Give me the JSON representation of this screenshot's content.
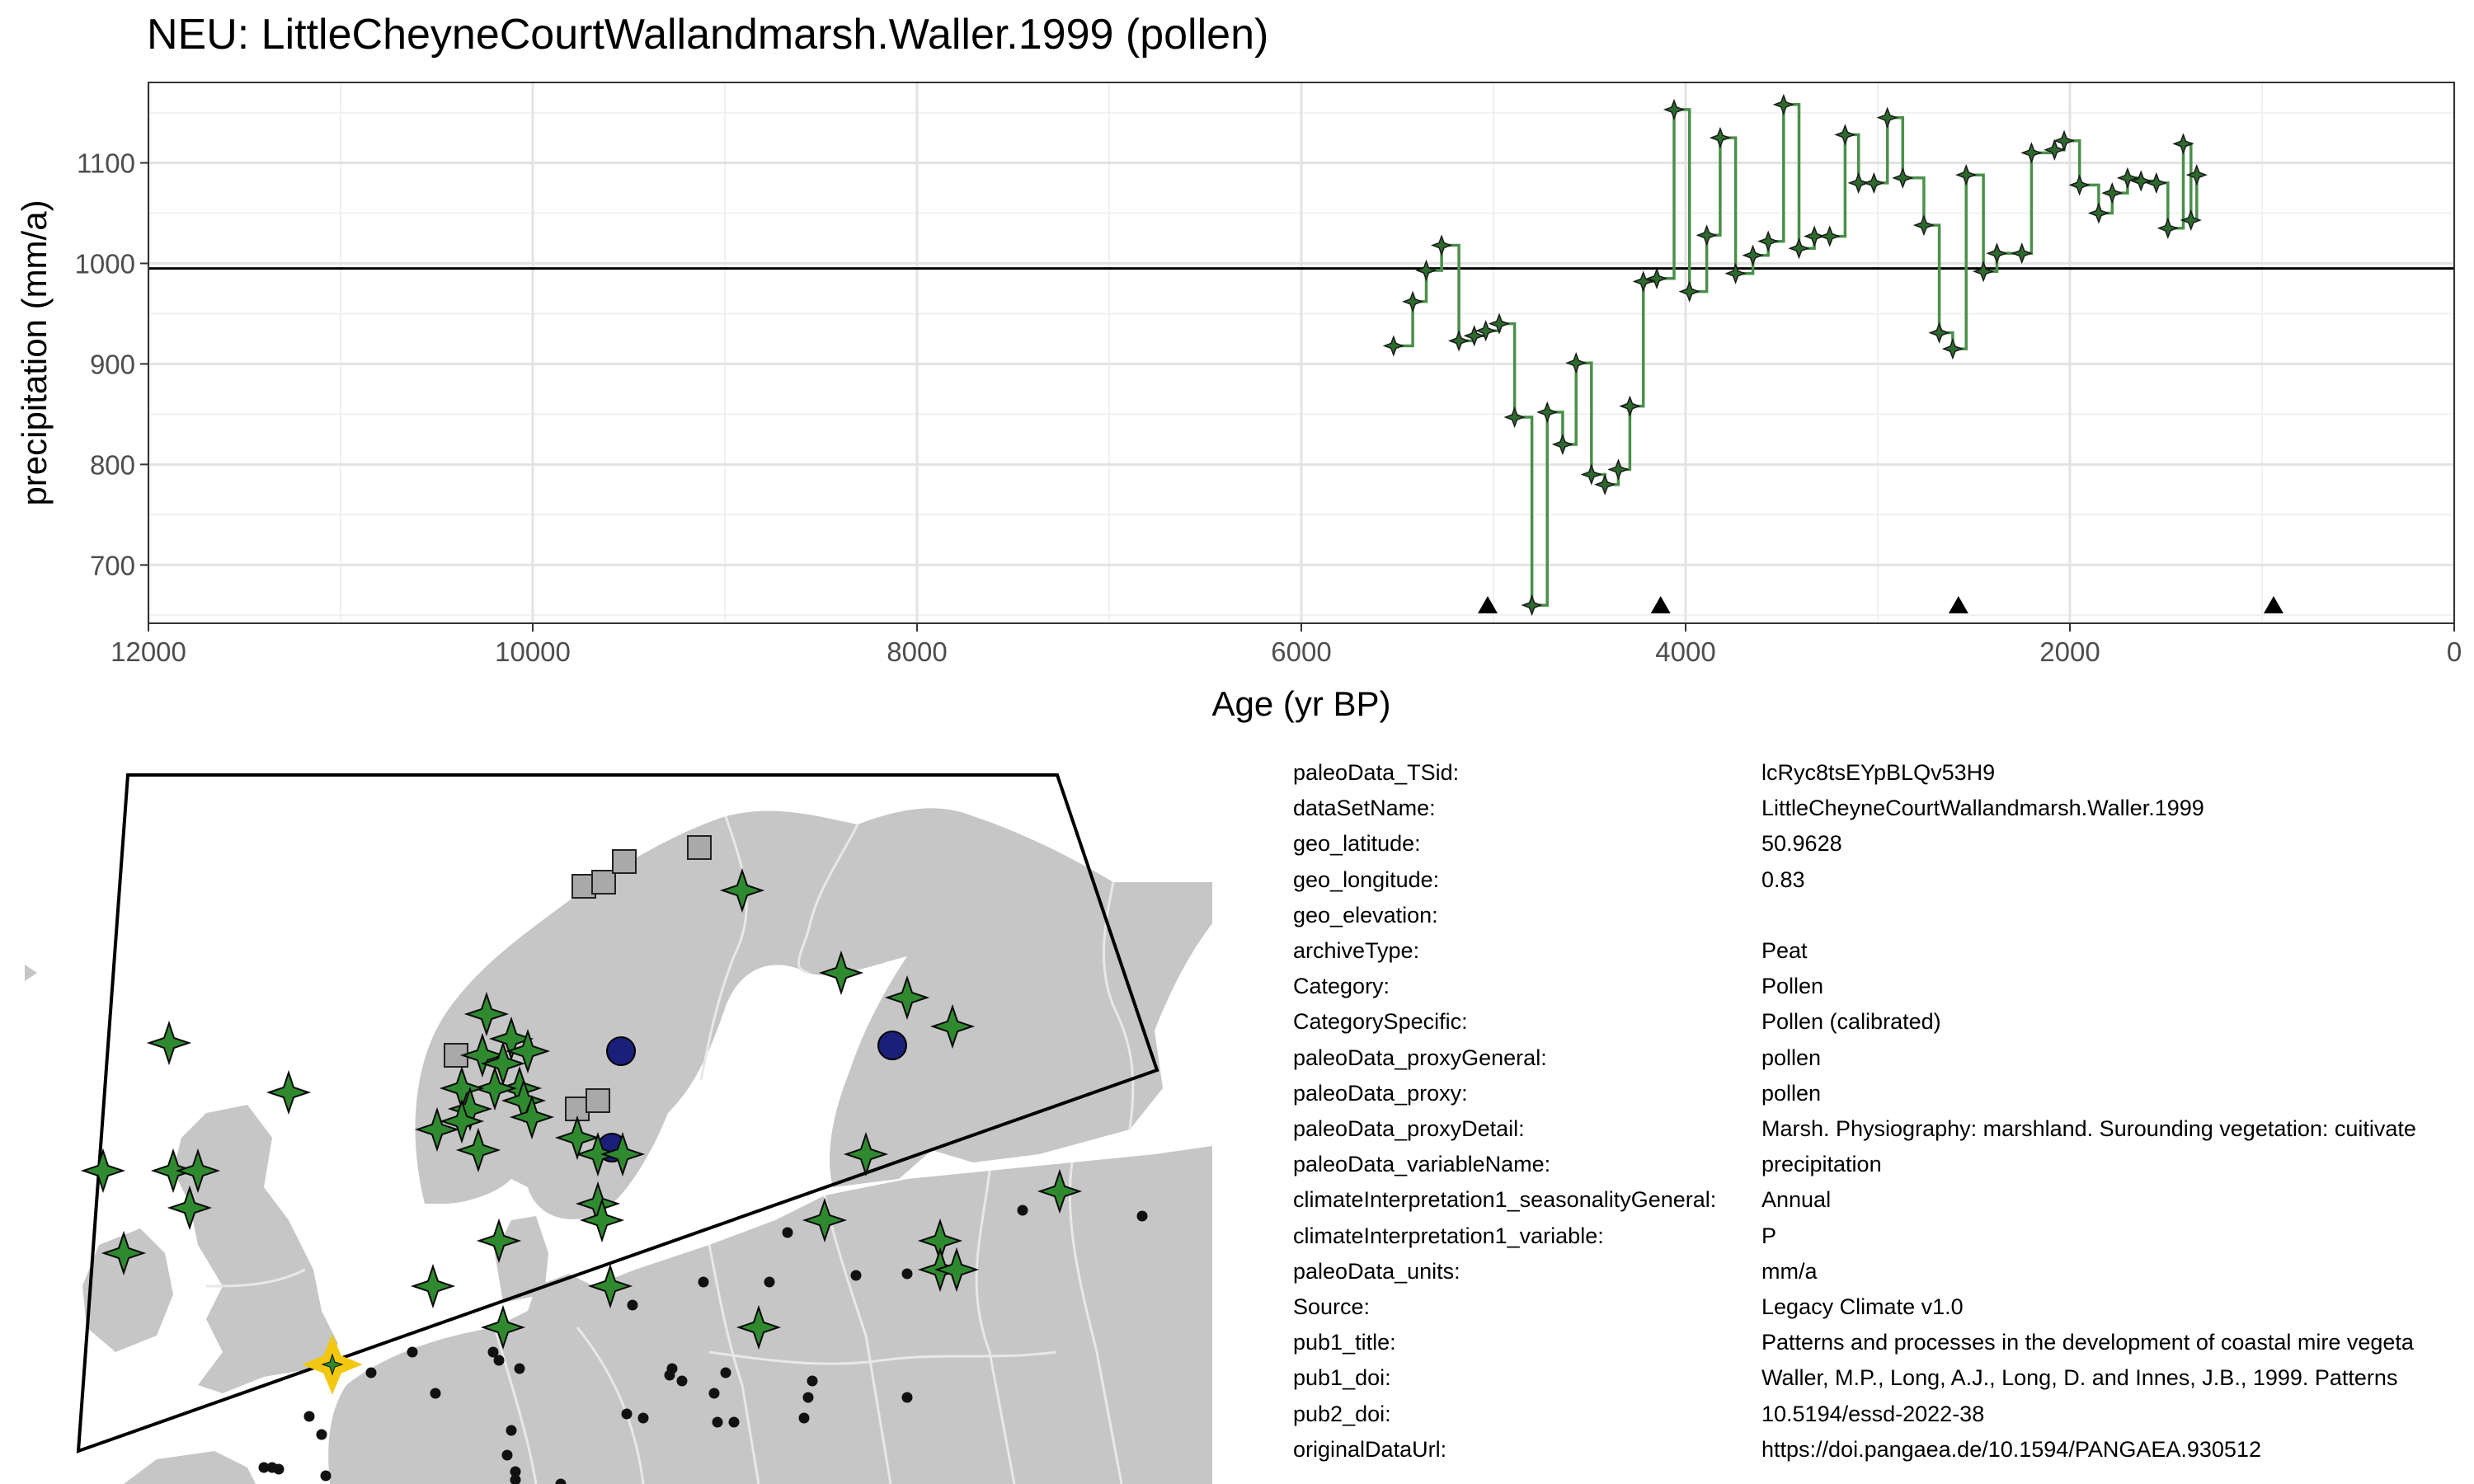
{
  "title": "NEU: LittleCheyneCourtWallandmarsh.Waller.1999 (pollen)",
  "chart_data": {
    "type": "line",
    "step": true,
    "xlabel": "Age (yr BP)",
    "ylabel": "precipitation (mm/a)",
    "xlim": [
      12000,
      0
    ],
    "xreversed": true,
    "ylim": [
      642,
      1180
    ],
    "xticks": [
      12000,
      10000,
      8000,
      6000,
      4000,
      2000,
      0
    ],
    "yticks": [
      700,
      800,
      900,
      1000,
      1100
    ],
    "grid": true,
    "reference_line": 995,
    "line_color": "#4a8f4a",
    "marker_color": "#2d6a2d",
    "points": [
      [
        5520,
        918
      ],
      [
        5420,
        962
      ],
      [
        5350,
        993
      ],
      [
        5270,
        1018
      ],
      [
        5180,
        923
      ],
      [
        5100,
        928
      ],
      [
        5040,
        933
      ],
      [
        4970,
        940
      ],
      [
        4890,
        847
      ],
      [
        4800,
        660
      ],
      [
        4720,
        852
      ],
      [
        4640,
        820
      ],
      [
        4570,
        901
      ],
      [
        4490,
        790
      ],
      [
        4420,
        780
      ],
      [
        4350,
        795
      ],
      [
        4290,
        858
      ],
      [
        4220,
        982
      ],
      [
        4150,
        985
      ],
      [
        4060,
        1153
      ],
      [
        3980,
        972
      ],
      [
        3890,
        1028
      ],
      [
        3820,
        1125
      ],
      [
        3740,
        990
      ],
      [
        3650,
        1008
      ],
      [
        3570,
        1022
      ],
      [
        3490,
        1158
      ],
      [
        3410,
        1015
      ],
      [
        3330,
        1027
      ],
      [
        3250,
        1027
      ],
      [
        3170,
        1128
      ],
      [
        3100,
        1080
      ],
      [
        3020,
        1080
      ],
      [
        2950,
        1145
      ],
      [
        2870,
        1085
      ],
      [
        2760,
        1038
      ],
      [
        2680,
        931
      ],
      [
        2610,
        915
      ],
      [
        2540,
        1088
      ],
      [
        2450,
        992
      ],
      [
        2380,
        1010
      ],
      [
        2250,
        1010
      ],
      [
        2200,
        1110
      ],
      [
        2080,
        1113
      ],
      [
        2030,
        1122
      ],
      [
        1950,
        1078
      ],
      [
        1850,
        1050
      ],
      [
        1780,
        1070
      ],
      [
        1700,
        1085
      ],
      [
        1630,
        1082
      ],
      [
        1550,
        1080
      ],
      [
        1490,
        1035
      ],
      [
        1410,
        1119
      ],
      [
        1370,
        1043
      ],
      [
        1340,
        1088
      ]
    ],
    "chron_markers": [
      5030,
      4130,
      2580,
      940
    ]
  },
  "map": {
    "land_color": "#c6c6c6",
    "border_color": "#e8e8e8",
    "highlight_color": "#f2c811",
    "star_color": "#2f8a2f",
    "square_color": "#a9a9a9",
    "circle_color": "#1a1f7a",
    "dot_color": "#111111",
    "stars": [
      [
        205,
        1265
      ],
      [
        350,
        1325
      ],
      [
        125,
        1420
      ],
      [
        210,
        1420
      ],
      [
        240,
        1420
      ],
      [
        230,
        1465
      ],
      [
        150,
        1520
      ],
      [
        525,
        1560
      ],
      [
        605,
        1505
      ],
      [
        610,
        1610
      ],
      [
        725,
        1460
      ],
      [
        725,
        1400
      ],
      [
        755,
        1400
      ],
      [
        1020,
        1180
      ],
      [
        1100,
        1210
      ],
      [
        1155,
        1245
      ],
      [
        1285,
        1445
      ],
      [
        1140,
        1505
      ],
      [
        1140,
        1540
      ],
      [
        1160,
        1540
      ],
      [
        1050,
        1400
      ],
      [
        900,
        1080
      ],
      [
        1000,
        1480
      ],
      [
        585,
        1280
      ],
      [
        590,
        1230
      ],
      [
        620,
        1260
      ],
      [
        610,
        1290
      ],
      [
        640,
        1275
      ],
      [
        630,
        1320
      ],
      [
        600,
        1320
      ],
      [
        560,
        1320
      ],
      [
        570,
        1345
      ],
      [
        530,
        1370
      ],
      [
        580,
        1395
      ],
      [
        560,
        1360
      ],
      [
        635,
        1335
      ],
      [
        645,
        1355
      ],
      [
        700,
        1380
      ],
      [
        730,
        1480
      ],
      [
        740,
        1560
      ],
      [
        920,
        1610
      ]
    ],
    "squares": [
      [
        553,
        1280
      ],
      [
        700,
        1345
      ],
      [
        725,
        1335
      ],
      [
        708,
        1075
      ],
      [
        732,
        1070
      ],
      [
        757,
        1045
      ],
      [
        848,
        1028
      ]
    ],
    "circles": [
      [
        753,
        1275
      ],
      [
        1082,
        1268
      ],
      [
        742,
        1392
      ]
    ],
    "dots": [
      [
        955,
        1495
      ],
      [
        1240,
        1468
      ],
      [
        1385,
        1475
      ],
      [
        767,
        1583
      ],
      [
        853,
        1555
      ],
      [
        933,
        1555
      ],
      [
        1038,
        1547
      ],
      [
        1100,
        1545
      ],
      [
        500,
        1640
      ],
      [
        598,
        1640
      ],
      [
        605,
        1650
      ],
      [
        528,
        1690
      ],
      [
        450,
        1665
      ],
      [
        630,
        1660
      ],
      [
        815,
        1660
      ],
      [
        812,
        1668
      ],
      [
        827,
        1675
      ],
      [
        866,
        1690
      ],
      [
        880,
        1665
      ],
      [
        985,
        1675
      ],
      [
        980,
        1695
      ],
      [
        1100,
        1695
      ],
      [
        975,
        1720
      ],
      [
        760,
        1715
      ],
      [
        780,
        1720
      ],
      [
        870,
        1725
      ],
      [
        890,
        1725
      ],
      [
        615,
        1765
      ],
      [
        625,
        1785
      ],
      [
        375,
        1718
      ],
      [
        390,
        1740
      ],
      [
        620,
        1735
      ],
      [
        320,
        1780
      ],
      [
        330,
        1780
      ],
      [
        338,
        1782
      ],
      [
        395,
        1790
      ],
      [
        625,
        1795
      ],
      [
        680,
        1800
      ]
    ],
    "highlight": [
      403,
      1655
    ]
  },
  "info": [
    {
      "key": "paleoData_TSid:",
      "value": "lcRyc8tsEYpBLQv53H9"
    },
    {
      "key": "dataSetName:",
      "value": "LittleCheyneCourtWallandmarsh.Waller.1999"
    },
    {
      "key": "geo_latitude:",
      "value": "50.9628"
    },
    {
      "key": "geo_longitude:",
      "value": "0.83"
    },
    {
      "key": "geo_elevation:",
      "value": ""
    },
    {
      "key": "archiveType:",
      "value": "Peat"
    },
    {
      "key": "Category:",
      "value": "Pollen"
    },
    {
      "key": "CategorySpecific:",
      "value": "Pollen (calibrated)"
    },
    {
      "key": "paleoData_proxyGeneral:",
      "value": "pollen"
    },
    {
      "key": "paleoData_proxy:",
      "value": "pollen"
    },
    {
      "key": "paleoData_proxyDetail:",
      "value": "Marsh. Physiography: marshland. Surounding vegetation: cuitivate"
    },
    {
      "key": "paleoData_variableName:",
      "value": "precipitation"
    },
    {
      "key": "climateInterpretation1_seasonalityGeneral:",
      "value": "Annual"
    },
    {
      "key": "climateInterpretation1_variable:",
      "value": "P"
    },
    {
      "key": "paleoData_units:",
      "value": "mm/a"
    },
    {
      "key": "Source:",
      "value": "Legacy Climate v1.0"
    },
    {
      "key": "pub1_title:",
      "value": "Patterns and processes in the development of coastal mire vegeta"
    },
    {
      "key": "pub1_doi:",
      "value": "Waller, M.P., Long, A.J., Long, D. and Innes, J.B., 1999. Patterns"
    },
    {
      "key": "pub2_doi:",
      "value": "10.5194/essd-2022-38"
    },
    {
      "key": "originalDataUrl:",
      "value": "https://doi.pangaea.de/10.1594/PANGAEA.930512"
    }
  ]
}
